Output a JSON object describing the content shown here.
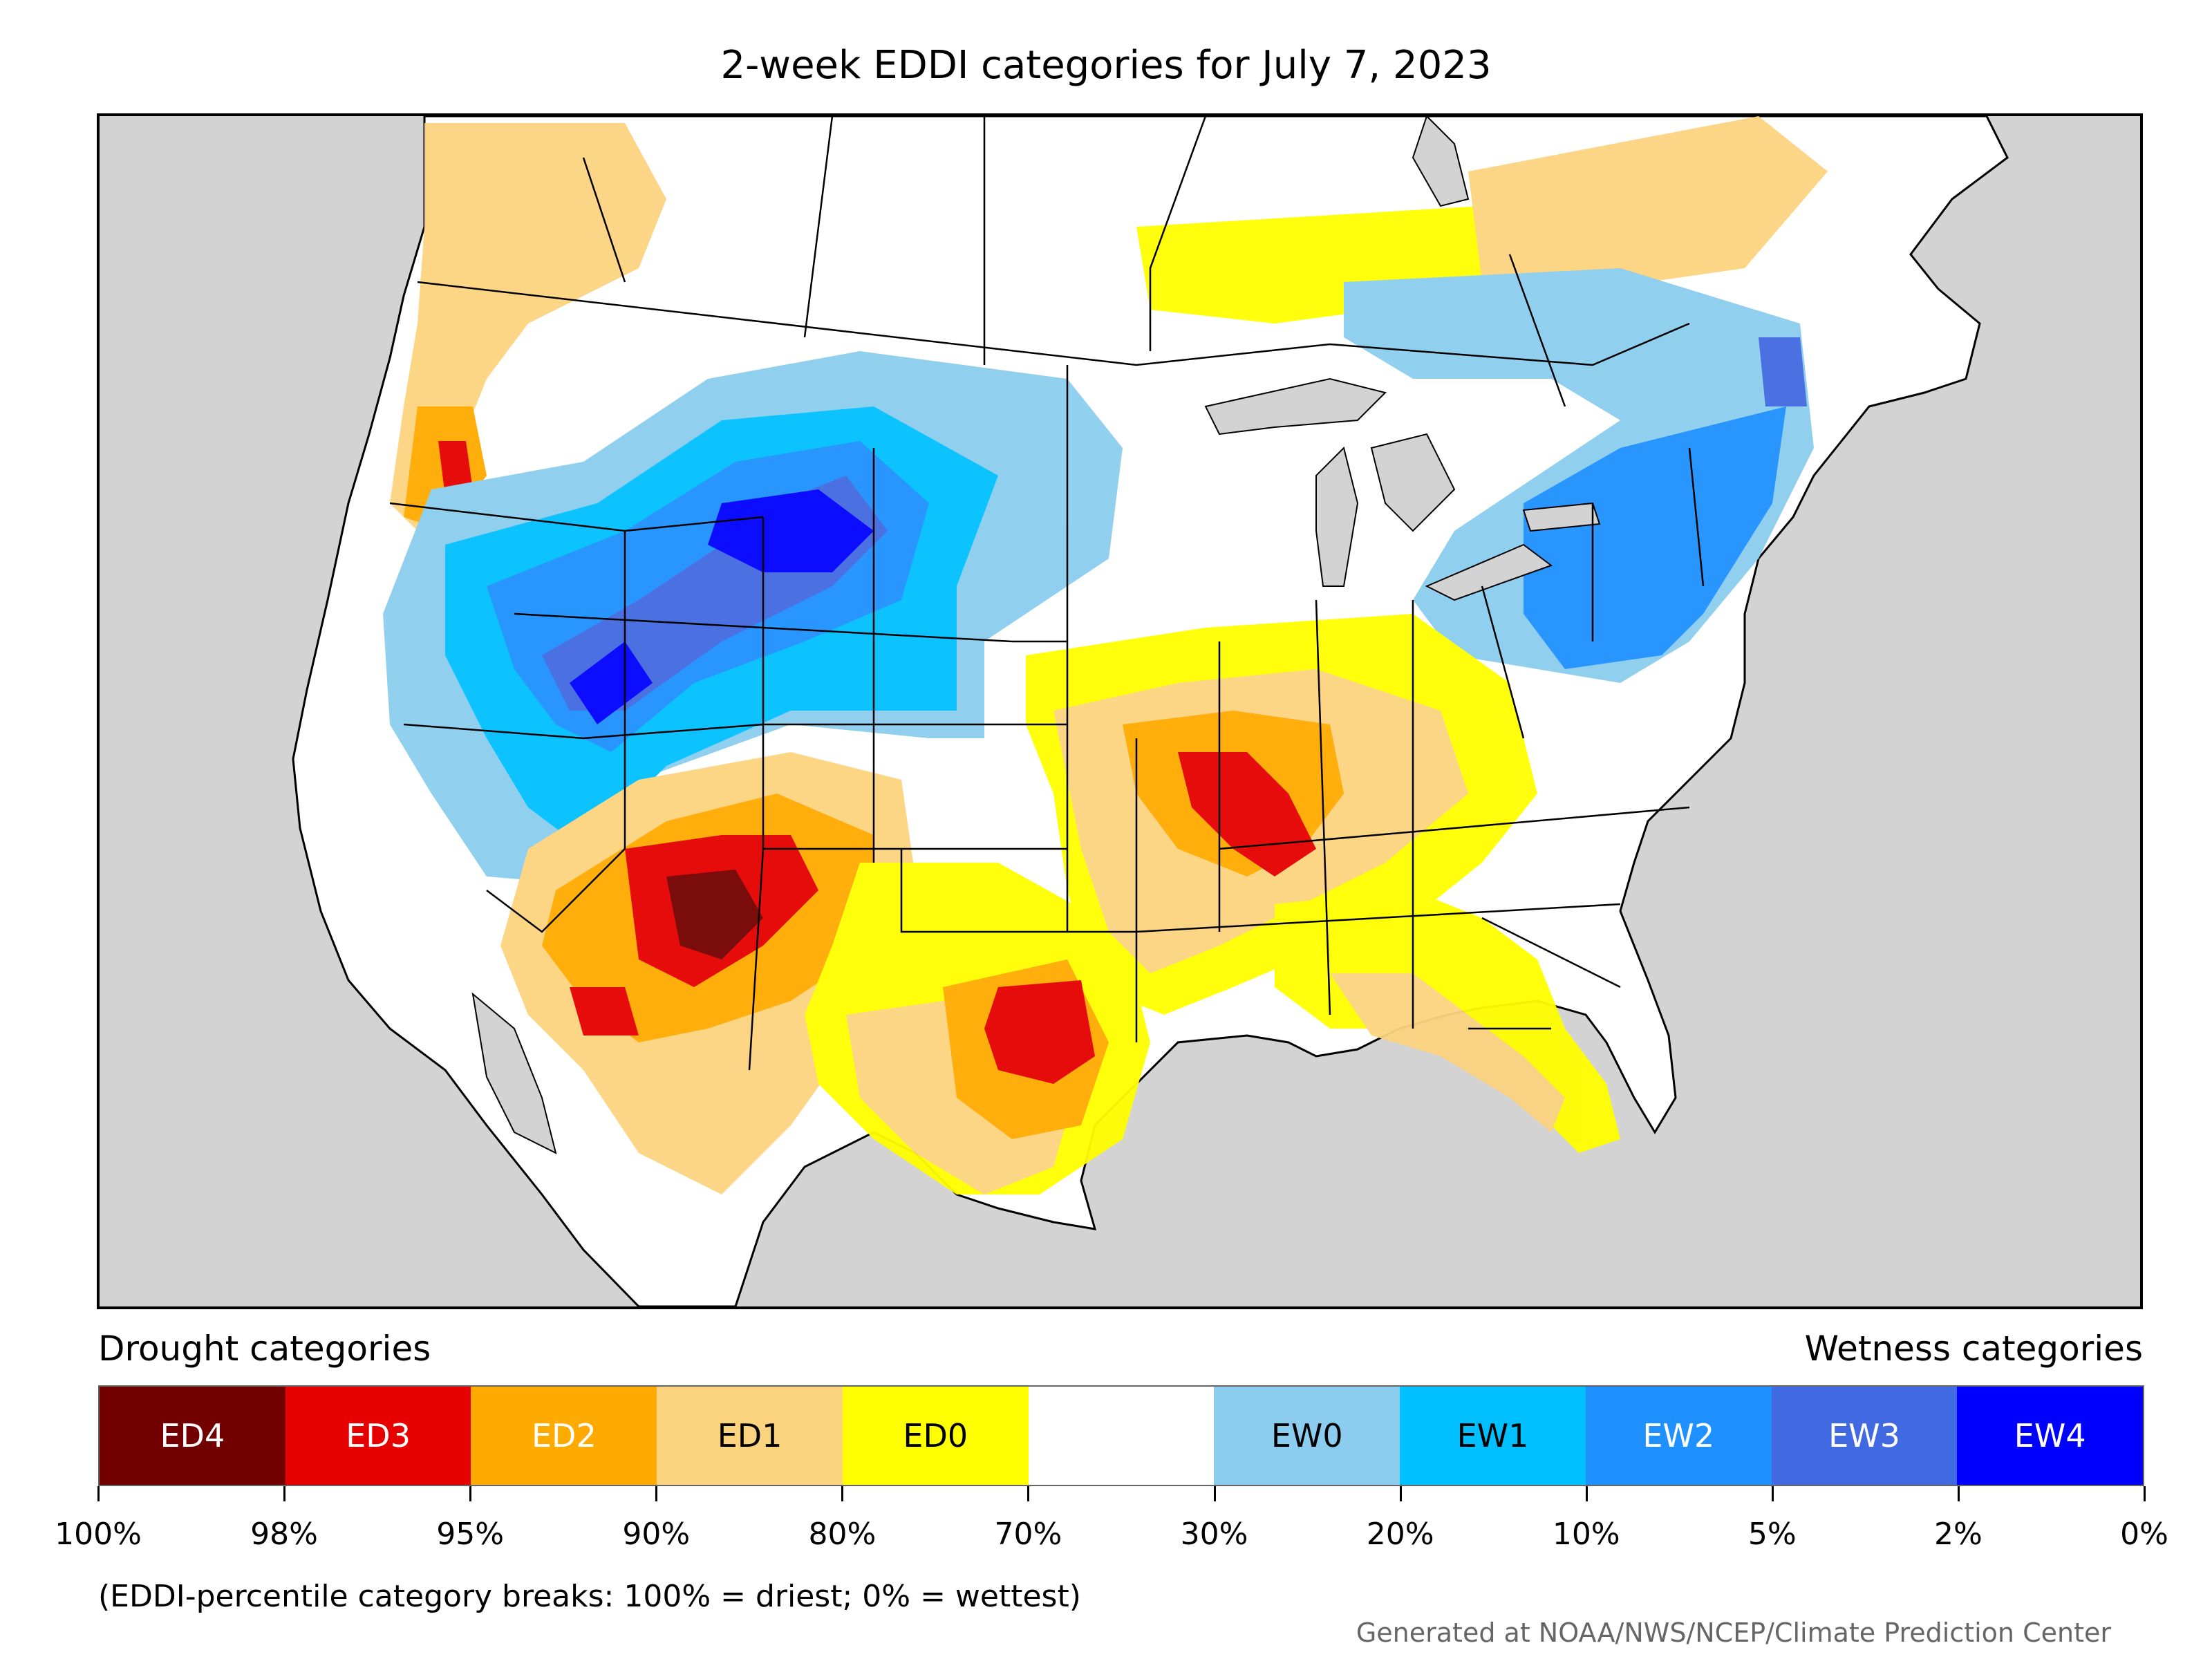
{
  "title": "2-week EDDI categories for July 7, 2023",
  "legend": {
    "drought_title": "Drought categories",
    "wetness_title": "Wetness categories",
    "categories": [
      {
        "label": "ED4",
        "color": "#730000",
        "text_color": "#ffffff"
      },
      {
        "label": "ED3",
        "color": "#e60000",
        "text_color": "#ffffff"
      },
      {
        "label": "ED2",
        "color": "#ffaa00",
        "text_color": "#ffffff"
      },
      {
        "label": "ED1",
        "color": "#fcd37f",
        "text_color": "#000000"
      },
      {
        "label": "ED0",
        "color": "#ffff00",
        "text_color": "#000000"
      },
      {
        "label": "",
        "color": "#ffffff",
        "text_color": "#000000"
      },
      {
        "label": "EW0",
        "color": "#8ccdef",
        "text_color": "#000000"
      },
      {
        "label": "EW1",
        "color": "#00c0ff",
        "text_color": "#000000"
      },
      {
        "label": "EW2",
        "color": "#1e90ff",
        "text_color": "#ffffff"
      },
      {
        "label": "EW3",
        "color": "#4169e1",
        "text_color": "#ffffff"
      },
      {
        "label": "EW4",
        "color": "#0000ff",
        "text_color": "#ffffff"
      }
    ],
    "tick_labels": [
      "100%",
      "98%",
      "95%",
      "90%",
      "80%",
      "70%",
      "30%",
      "20%",
      "10%",
      "5%",
      "2%",
      "0%"
    ]
  },
  "note": "(EDDI-percentile category breaks: 100% = driest; 0% = wettest)",
  "credit": "Generated at NOAA/NWS/NCEP/Climate Prediction Center",
  "colors": {
    "ocean": "#d3d3d3",
    "land": "#ffffff",
    "borders": "#000000"
  }
}
